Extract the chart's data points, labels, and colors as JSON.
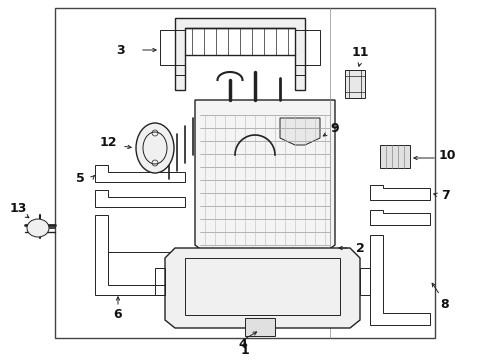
{
  "bg_color": "#ffffff",
  "line_color": "#222222",
  "label_color": "#111111",
  "fig_width": 4.9,
  "fig_height": 3.6,
  "dpi": 100
}
